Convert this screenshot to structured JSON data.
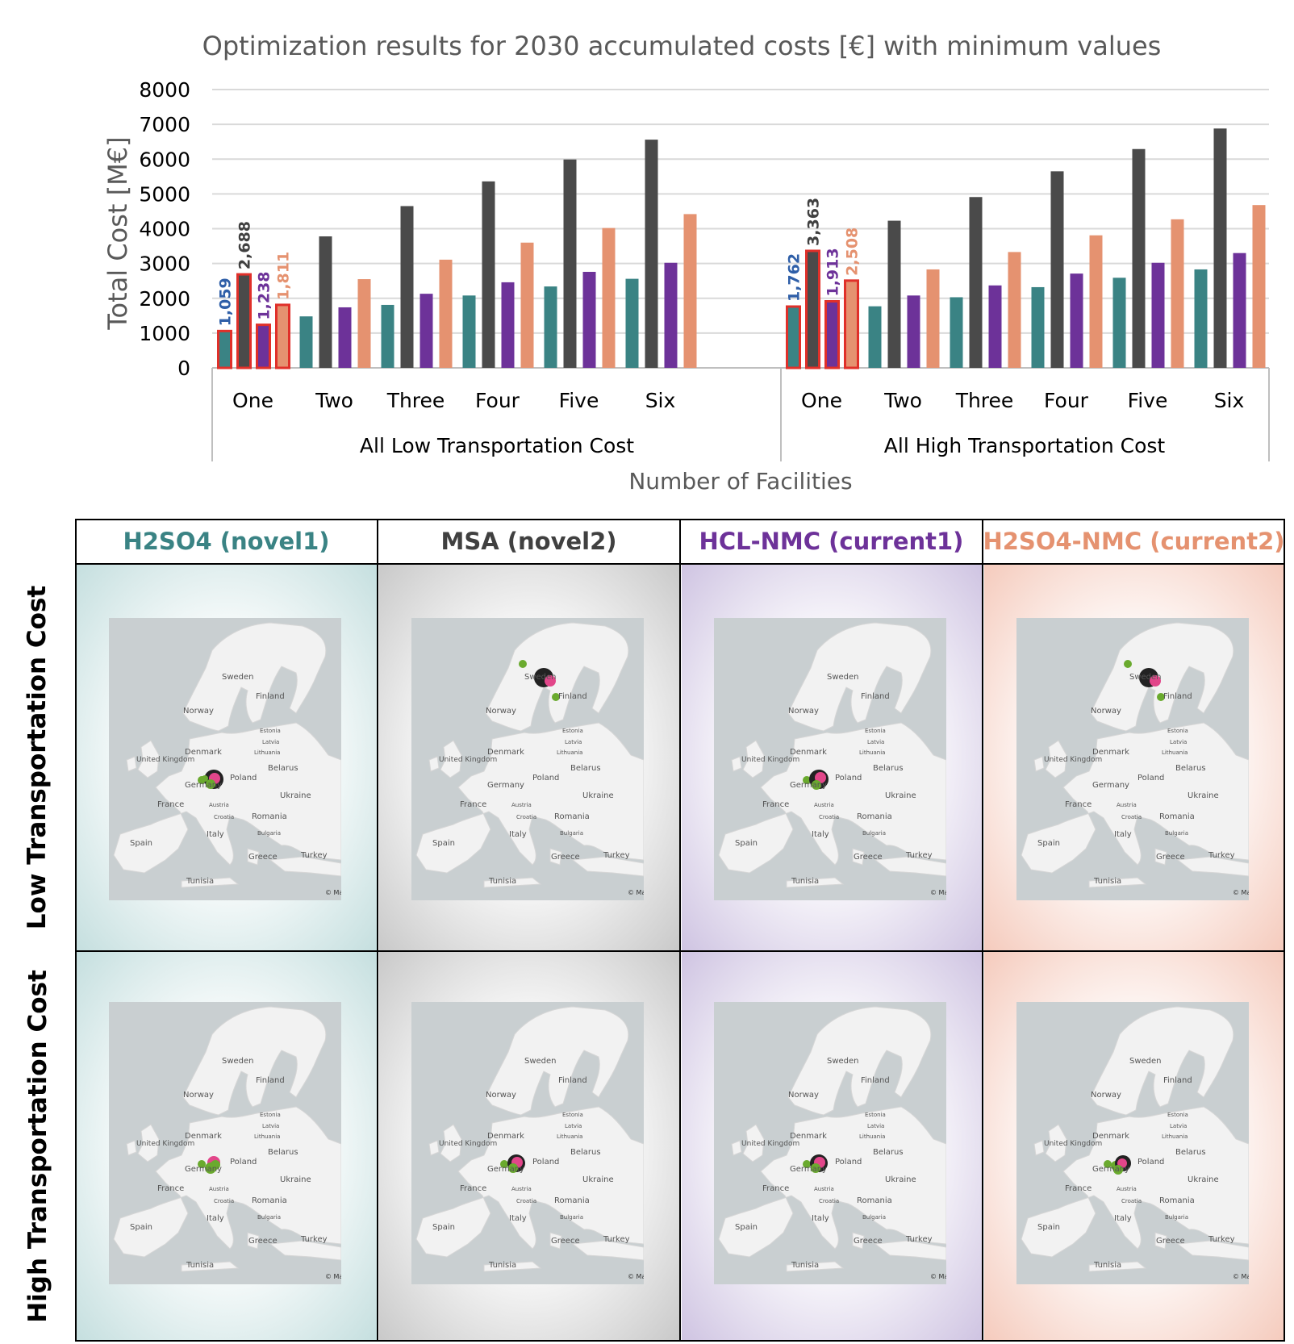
{
  "chart_data": {
    "type": "bar",
    "title": "Optimization results for 2030 accumulated costs [€] with minimum values",
    "ylabel": "Total Cost [M€]",
    "xlabel": "Number of Facilities",
    "ylim": [
      0,
      8000
    ],
    "yticks": [
      "0",
      "1000",
      "2000",
      "3000",
      "4000",
      "5000",
      "6000",
      "7000",
      "8000"
    ],
    "grid": true,
    "groups": [
      "All Low Transportation Cost",
      "All High Transportation Cost"
    ],
    "categories": [
      "One",
      "Two",
      "Three",
      "Four",
      "Five",
      "Six"
    ],
    "series": [
      {
        "color": "#3a8384",
        "low": [
          1059,
          1480,
          1810,
          2080,
          2340,
          2560
        ],
        "high": [
          1762,
          1770,
          2030,
          2320,
          2590,
          2830
        ]
      },
      {
        "color": "#4a4a4a",
        "low": [
          2688,
          3780,
          4650,
          5360,
          5990,
          6560
        ],
        "high": [
          3363,
          4230,
          4910,
          5650,
          6290,
          6880
        ]
      },
      {
        "color": "#6d3299",
        "low": [
          1238,
          1740,
          2130,
          2460,
          2760,
          3020
        ],
        "high": [
          1913,
          2080,
          2370,
          2710,
          3020,
          3300
        ]
      },
      {
        "color": "#e59270",
        "low": [
          1811,
          2550,
          3110,
          3600,
          4020,
          4420
        ],
        "high": [
          2508,
          2830,
          3330,
          3810,
          4270,
          4680
        ]
      }
    ],
    "min_labels": {
      "low": [
        "1,059",
        "2,688",
        "1,238",
        "1,811"
      ],
      "high": [
        "1,762",
        "3,363",
        "1,913",
        "2,508"
      ]
    },
    "label_colors": [
      "#2f5fa8",
      "#404040",
      "#6d3299",
      "#e59270"
    ],
    "highlight_color": "#e0302a"
  },
  "panel": {
    "columns": [
      {
        "label": "H2SO4 (novel1)",
        "color": "#3a8384"
      },
      {
        "label": "MSA (novel2)",
        "color": "#404040"
      },
      {
        "label": "HCL-NMC (current1)",
        "color": "#6d3299"
      },
      {
        "label": "H2SO4-NMC (current2)",
        "color": "#e59270"
      }
    ],
    "rows": [
      {
        "label": "Low Transportation Cost"
      },
      {
        "label": "High Transportation Cost"
      }
    ],
    "map_labels": {
      "sweden": "Sweden",
      "finland": "Finland",
      "norway": "Norway",
      "estonia": "Estonia",
      "latvia": "Latvia",
      "lithuania": "Lithuania",
      "denmark": "Denmark",
      "uk": "United Kingdom",
      "belarus": "Belarus",
      "poland": "Poland",
      "germany": "Germany",
      "ukraine": "Ukraine",
      "france": "France",
      "austria": "Austria",
      "croatia": "Croatia",
      "romania": "Romania",
      "bulgaria": "Bulgaria",
      "spain": "Spain",
      "italy": "Italy",
      "greece": "Greece",
      "turkey": "Turkey",
      "tunisia": "Tunisia",
      "credit": "© Ma"
    },
    "markers": {
      "facility_color": "#222222",
      "highlight_color": "#e2468a",
      "supply_color": "#6aaa2e"
    }
  }
}
